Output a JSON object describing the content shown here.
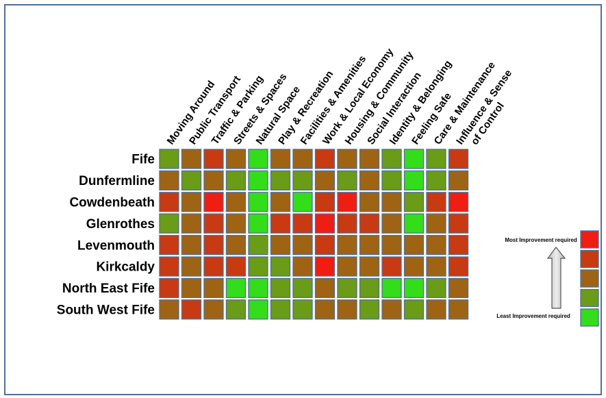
{
  "chart_data": {
    "type": "heatmap",
    "title": "",
    "categories": [
      "Moving Around",
      "Public Transport",
      "Traffic & Parking",
      "Streets & Spaces",
      "Natural Space",
      "Play & Recreation",
      "Facilities & Amenities",
      "Work & Local Economy",
      "Housing & Community",
      "Social Interaction",
      "Identity & Belonging",
      "Feeling Safe",
      "Care & Maintenance",
      "Influence & Sense of Control"
    ],
    "category_lines": [
      [
        "Moving Around"
      ],
      [
        "Public Transport"
      ],
      [
        "Traffic & Parking"
      ],
      [
        "Streets & Spaces"
      ],
      [
        "Natural Space"
      ],
      [
        "Play & Recreation"
      ],
      [
        "Facilities & Amenities"
      ],
      [
        "Work & Local Economy"
      ],
      [
        "Housing & Community"
      ],
      [
        "Social Interaction"
      ],
      [
        "Identity & Belonging"
      ],
      [
        "Feeling Safe"
      ],
      [
        "Care & Maintenance"
      ],
      [
        "Influence & Sense",
        "of Control"
      ]
    ],
    "rows": [
      "Fife",
      "Dunfermline",
      "Cowdenbeath",
      "Glenrothes",
      "Levenmouth",
      "Kirkcaldy",
      "North East Fife",
      "South West Fife"
    ],
    "scale": "1 = least improvement required, 5 = most improvement required",
    "values": [
      [
        2,
        3,
        4,
        3,
        1,
        3,
        3,
        4,
        3,
        3,
        2,
        1,
        2,
        4
      ],
      [
        3,
        2,
        3,
        2,
        1,
        2,
        2,
        3,
        2,
        3,
        2,
        1,
        2,
        3
      ],
      [
        4,
        3,
        5,
        3,
        1,
        3,
        1,
        4,
        5,
        3,
        3,
        2,
        4,
        5
      ],
      [
        2,
        3,
        4,
        3,
        1,
        4,
        4,
        5,
        4,
        4,
        3,
        1,
        3,
        4
      ],
      [
        4,
        3,
        4,
        3,
        2,
        3,
        3,
        4,
        3,
        3,
        3,
        3,
        3,
        4
      ],
      [
        4,
        3,
        4,
        4,
        2,
        2,
        3,
        5,
        3,
        3,
        4,
        3,
        3,
        4
      ],
      [
        4,
        3,
        3,
        1,
        1,
        2,
        2,
        3,
        2,
        2,
        1,
        1,
        2,
        3
      ],
      [
        3,
        4,
        3,
        2,
        1,
        2,
        2,
        3,
        3,
        2,
        3,
        2,
        3,
        3
      ]
    ],
    "legend": {
      "top_label": "Most Improvement required",
      "bottom_label": "Least Improvement required",
      "levels": [
        5,
        4,
        3,
        2,
        1
      ],
      "placement": "right"
    },
    "colors": {
      "1": "#33dd1a",
      "2": "#6a9c17",
      "3": "#9e6414",
      "4": "#c83a12",
      "5": "#f01d13"
    },
    "cell_border": "#4f6e96"
  }
}
